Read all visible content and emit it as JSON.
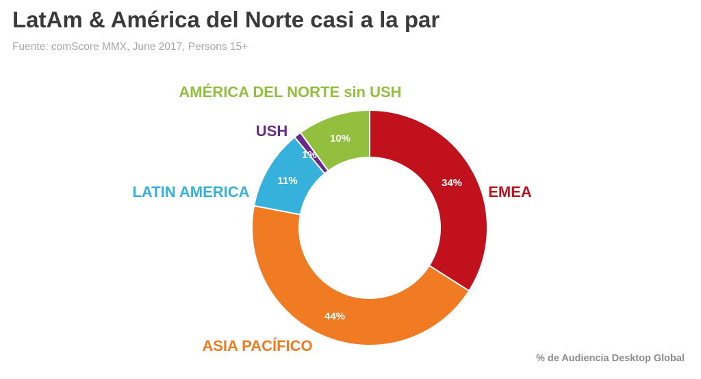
{
  "title": "LatAm & América del Norte casi a la par",
  "subtitle": "Fuente: comScore MMX, June 2017, Persons 15+",
  "footer": "% de Audiencia Desktop Global",
  "chart_data": {
    "type": "pie",
    "donut": true,
    "slices": [
      {
        "label": "EMEA",
        "value": 34,
        "value_label": "34%",
        "color": "#c0111d"
      },
      {
        "label": "ASIA PACÍFICO",
        "value": 44,
        "value_label": "44%",
        "color": "#f07b23"
      },
      {
        "label": "LATIN AMERICA",
        "value": 11,
        "value_label": "11%",
        "color": "#35b1dc"
      },
      {
        "label": "USH",
        "value": 1,
        "value_label": "1%",
        "color": "#6a2a8a"
      },
      {
        "label": "AMÉRICA DEL NORTE sin USH",
        "value": 10,
        "value_label": "10%",
        "color": "#92c03e"
      }
    ]
  }
}
